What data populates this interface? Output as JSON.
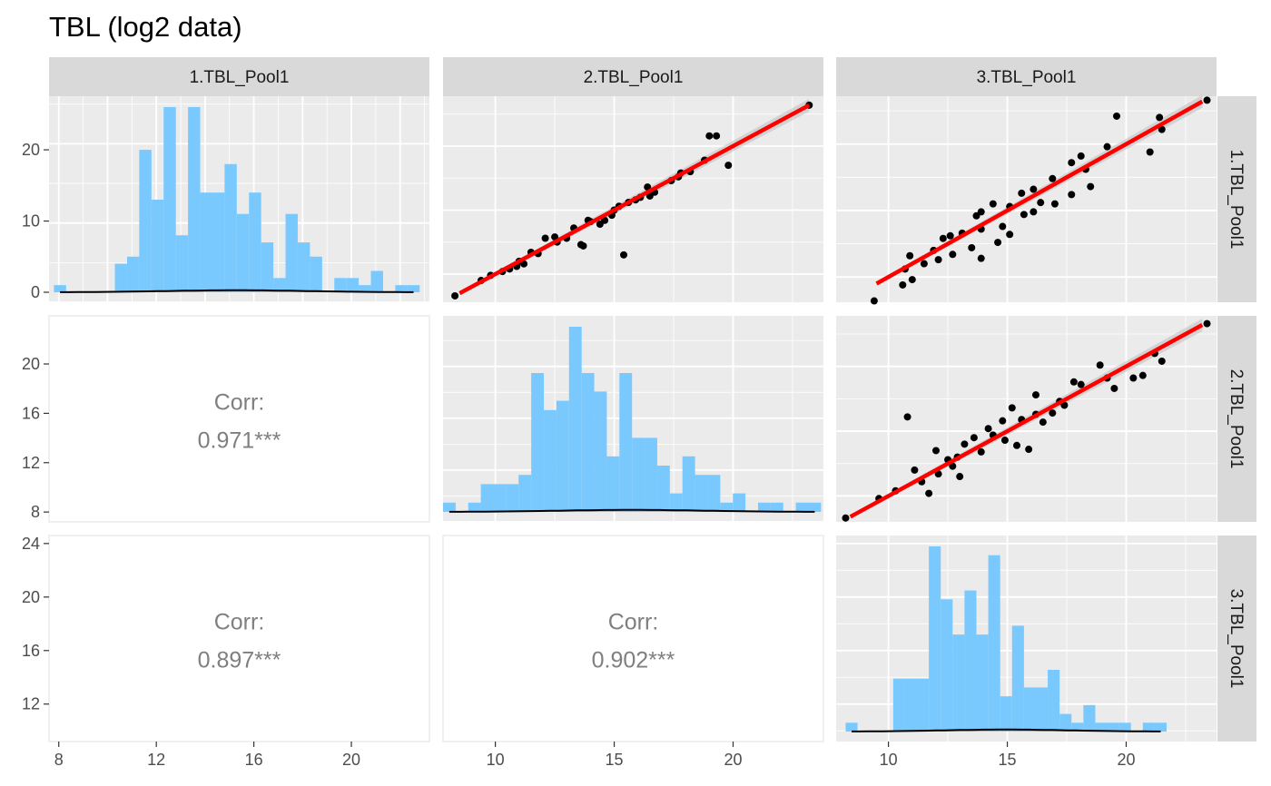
{
  "title": "TBL (log2 data)",
  "variables": [
    "1.TBL_Pool1",
    "2.TBL_Pool1",
    "3.TBL_Pool1"
  ],
  "colors": {
    "panel_bg": "#ebebeb",
    "grid": "#ffffff",
    "strip_bg": "#d9d9d9",
    "histogram_fill": "#79c9ff",
    "points": "#000000",
    "fit_line": "#ff0000",
    "confidence_band": "#bdbdbd",
    "density_line": "#000000",
    "corr_text": "#7f7f7f"
  },
  "chart_data": [
    {
      "type": "bar",
      "panel": "1.TBL_Pool1 (diagonal)",
      "title": "",
      "x_range": [
        8,
        23
      ],
      "y_range": [
        0,
        26
      ],
      "x_ticks": [
        "8",
        "12",
        "16",
        "20"
      ],
      "y_ticks": [
        "0",
        "10",
        "20"
      ],
      "bin_start": 7.8,
      "bin_width": 0.5,
      "counts": [
        1,
        0,
        0,
        0,
        0,
        4,
        5,
        20,
        13,
        26,
        8,
        26,
        14,
        14,
        18,
        11,
        14,
        7,
        2,
        11,
        7,
        5,
        0,
        2,
        2,
        1,
        3,
        0,
        1,
        1
      ],
      "density_curve": true
    },
    {
      "type": "scatter",
      "panel": "2.TBL_Pool1 vs 1.TBL_Pool1",
      "x_range": [
        7.8,
        23.8
      ],
      "y_range": [
        7.8,
        23.9
      ],
      "x_ticks": [
        "10",
        "15",
        "20"
      ],
      "fit": {
        "type": "linear",
        "slope": 1.0,
        "intercept": 0.0,
        "x_from": 8.5,
        "x_to": 23.2
      },
      "points": [
        [
          8.3,
          8.3
        ],
        [
          23.2,
          23.2
        ],
        [
          19.8,
          18.5
        ],
        [
          15.4,
          11.5
        ],
        [
          13.6,
          12.3
        ],
        [
          19.3,
          20.8
        ],
        [
          19.0,
          20.8
        ],
        [
          14.0,
          14.1
        ],
        [
          11.2,
          10.8
        ],
        [
          13.7,
          12.2
        ],
        [
          16.7,
          16.4
        ],
        [
          14.6,
          14.2
        ],
        [
          15.6,
          15.6
        ],
        [
          10.3,
          10.2
        ],
        [
          17.7,
          17.6
        ],
        [
          15.9,
          15.8
        ],
        [
          17.4,
          17.3
        ],
        [
          12.1,
          12.8
        ],
        [
          14.4,
          13.9
        ],
        [
          16.5,
          16.1
        ],
        [
          11.8,
          11.6
        ],
        [
          9.4,
          9.5
        ],
        [
          15.0,
          15.0
        ],
        [
          13.0,
          12.8
        ],
        [
          11.0,
          11.0
        ],
        [
          18.2,
          18.0
        ],
        [
          12.5,
          12.9
        ],
        [
          16.4,
          16.8
        ],
        [
          10.9,
          10.6
        ],
        [
          14.9,
          14.6
        ],
        [
          13.3,
          13.6
        ],
        [
          18.8,
          18.9
        ],
        [
          9.8,
          9.9
        ],
        [
          12.6,
          12.5
        ],
        [
          17.8,
          17.9
        ],
        [
          15.2,
          15.3
        ],
        [
          11.5,
          11.7
        ],
        [
          16.1,
          16.0
        ],
        [
          13.9,
          14.2
        ],
        [
          10.6,
          10.4
        ]
      ]
    },
    {
      "type": "scatter",
      "panel": "3.TBL_Pool1 vs 1.TBL_Pool1",
      "x_range": [
        7.8,
        23.8
      ],
      "y_range": [
        8.1,
        23.6
      ],
      "x_ticks": [
        "10",
        "15",
        "20"
      ],
      "fit": {
        "type": "linear",
        "slope": 1.0,
        "intercept": 0.0,
        "x_from": 9.5,
        "x_to": 23.2
      },
      "points": [
        [
          9.4,
          8.2
        ],
        [
          23.4,
          23.3
        ],
        [
          21.5,
          21.1
        ],
        [
          21.4,
          22.0
        ],
        [
          19.6,
          22.1
        ],
        [
          21.0,
          19.4
        ],
        [
          18.5,
          16.8
        ],
        [
          13.5,
          12.2
        ],
        [
          11.0,
          9.8
        ],
        [
          12.6,
          13.1
        ],
        [
          15.1,
          13.2
        ],
        [
          17.7,
          16.2
        ],
        [
          16.1,
          14.9
        ],
        [
          14.4,
          15.5
        ],
        [
          12.7,
          11.7
        ],
        [
          13.9,
          13.6
        ],
        [
          16.9,
          17.4
        ],
        [
          10.7,
          10.6
        ],
        [
          15.6,
          16.3
        ],
        [
          13.7,
          14.6
        ],
        [
          11.5,
          11.0
        ],
        [
          17.0,
          15.5
        ],
        [
          14.8,
          13.8
        ],
        [
          18.3,
          18.1
        ],
        [
          12.3,
          12.9
        ],
        [
          16.4,
          15.6
        ],
        [
          10.6,
          9.4
        ],
        [
          13.9,
          14.9
        ],
        [
          15.1,
          15.3
        ],
        [
          11.9,
          12.0
        ],
        [
          17.7,
          18.6
        ],
        [
          14.6,
          12.6
        ],
        [
          12.1,
          11.3
        ],
        [
          16.1,
          16.6
        ],
        [
          13.1,
          13.3
        ],
        [
          19.2,
          19.8
        ],
        [
          10.9,
          11.6
        ],
        [
          15.7,
          14.7
        ],
        [
          13.9,
          11.4
        ],
        [
          18.1,
          19.1
        ]
      ]
    },
    {
      "type": "bar",
      "panel": "2.TBL_Pool1 (diagonal)",
      "x_range": [
        7.8,
        23.8
      ],
      "y_range": [
        8.0,
        23.9
      ],
      "y_ticks": [
        "8",
        "12",
        "16",
        "20"
      ],
      "bin_start": 7.8,
      "bin_width": 0.53,
      "counts": [
        1,
        0,
        1,
        3,
        3,
        3,
        4,
        15,
        11,
        12,
        20,
        15,
        13,
        6,
        15,
        8,
        8,
        5,
        2,
        6,
        4,
        4,
        1,
        2,
        0,
        1,
        1,
        0,
        1,
        1
      ],
      "density_curve": true
    },
    {
      "type": "scatter",
      "panel": "3.TBL_Pool1 vs 2.TBL_Pool1",
      "x_range": [
        7.8,
        23.8
      ],
      "y_range": [
        8.0,
        23.9
      ],
      "x_ticks": [
        "10",
        "15",
        "20"
      ],
      "fit": {
        "type": "linear",
        "slope": 1.0,
        "intercept": 0.0,
        "x_from": 8.4,
        "x_to": 23.2
      },
      "points": [
        [
          8.2,
          8.3
        ],
        [
          23.4,
          23.3
        ],
        [
          21.2,
          21.0
        ],
        [
          21.5,
          20.4
        ],
        [
          20.3,
          19.1
        ],
        [
          20.7,
          19.3
        ],
        [
          10.8,
          16.1
        ],
        [
          16.2,
          17.8
        ],
        [
          17.2,
          17.3
        ],
        [
          14.4,
          14.7
        ],
        [
          12.9,
          13.0
        ],
        [
          11.1,
          12.0
        ],
        [
          15.6,
          15.9
        ],
        [
          12.1,
          11.7
        ],
        [
          13.6,
          14.5
        ],
        [
          17.4,
          17.0
        ],
        [
          9.6,
          9.8
        ],
        [
          16.5,
          15.7
        ],
        [
          13.2,
          14.0
        ],
        [
          14.9,
          14.3
        ],
        [
          12.0,
          13.5
        ],
        [
          18.1,
          18.6
        ],
        [
          11.7,
          10.2
        ],
        [
          15.2,
          16.8
        ],
        [
          13.9,
          13.4
        ],
        [
          19.2,
          19.1
        ],
        [
          12.5,
          12.8
        ],
        [
          16.9,
          16.4
        ],
        [
          14.2,
          15.2
        ],
        [
          10.3,
          10.4
        ],
        [
          18.9,
          20.1
        ],
        [
          15.9,
          13.6
        ],
        [
          13.0,
          11.5
        ],
        [
          17.8,
          18.8
        ],
        [
          11.4,
          11.1
        ],
        [
          16.2,
          16.3
        ],
        [
          14.8,
          15.8
        ],
        [
          12.7,
          12.3
        ],
        [
          19.5,
          18.3
        ],
        [
          15.4,
          13.9
        ]
      ]
    },
    {
      "type": "bar",
      "panel": "3.TBL_Pool1 (diagonal)",
      "x_range": [
        7.8,
        23.8
      ],
      "y_range": [
        8.0,
        23.9
      ],
      "y_ticks": [
        "12",
        "16",
        "20",
        "24"
      ],
      "x_ticks": [
        "10",
        "15",
        "20"
      ],
      "bin_start": 8.2,
      "bin_width": 0.5,
      "counts": [
        1,
        0,
        0,
        0,
        6,
        6,
        6,
        21,
        15,
        11,
        16,
        11,
        20,
        4,
        12,
        5,
        5,
        7,
        2,
        1,
        3,
        1,
        1,
        1,
        0,
        1,
        1
      ],
      "density_curve": true
    },
    {
      "type": "table",
      "panel": "correlations",
      "cells": [
        {
          "row": "2.TBL_Pool1",
          "col": "1.TBL_Pool1",
          "label": "Corr:",
          "value": "0.971***"
        },
        {
          "row": "3.TBL_Pool1",
          "col": "1.TBL_Pool1",
          "label": "Corr:",
          "value": "0.897***"
        },
        {
          "row": "3.TBL_Pool1",
          "col": "2.TBL_Pool1",
          "label": "Corr:",
          "value": "0.902***"
        }
      ]
    }
  ]
}
